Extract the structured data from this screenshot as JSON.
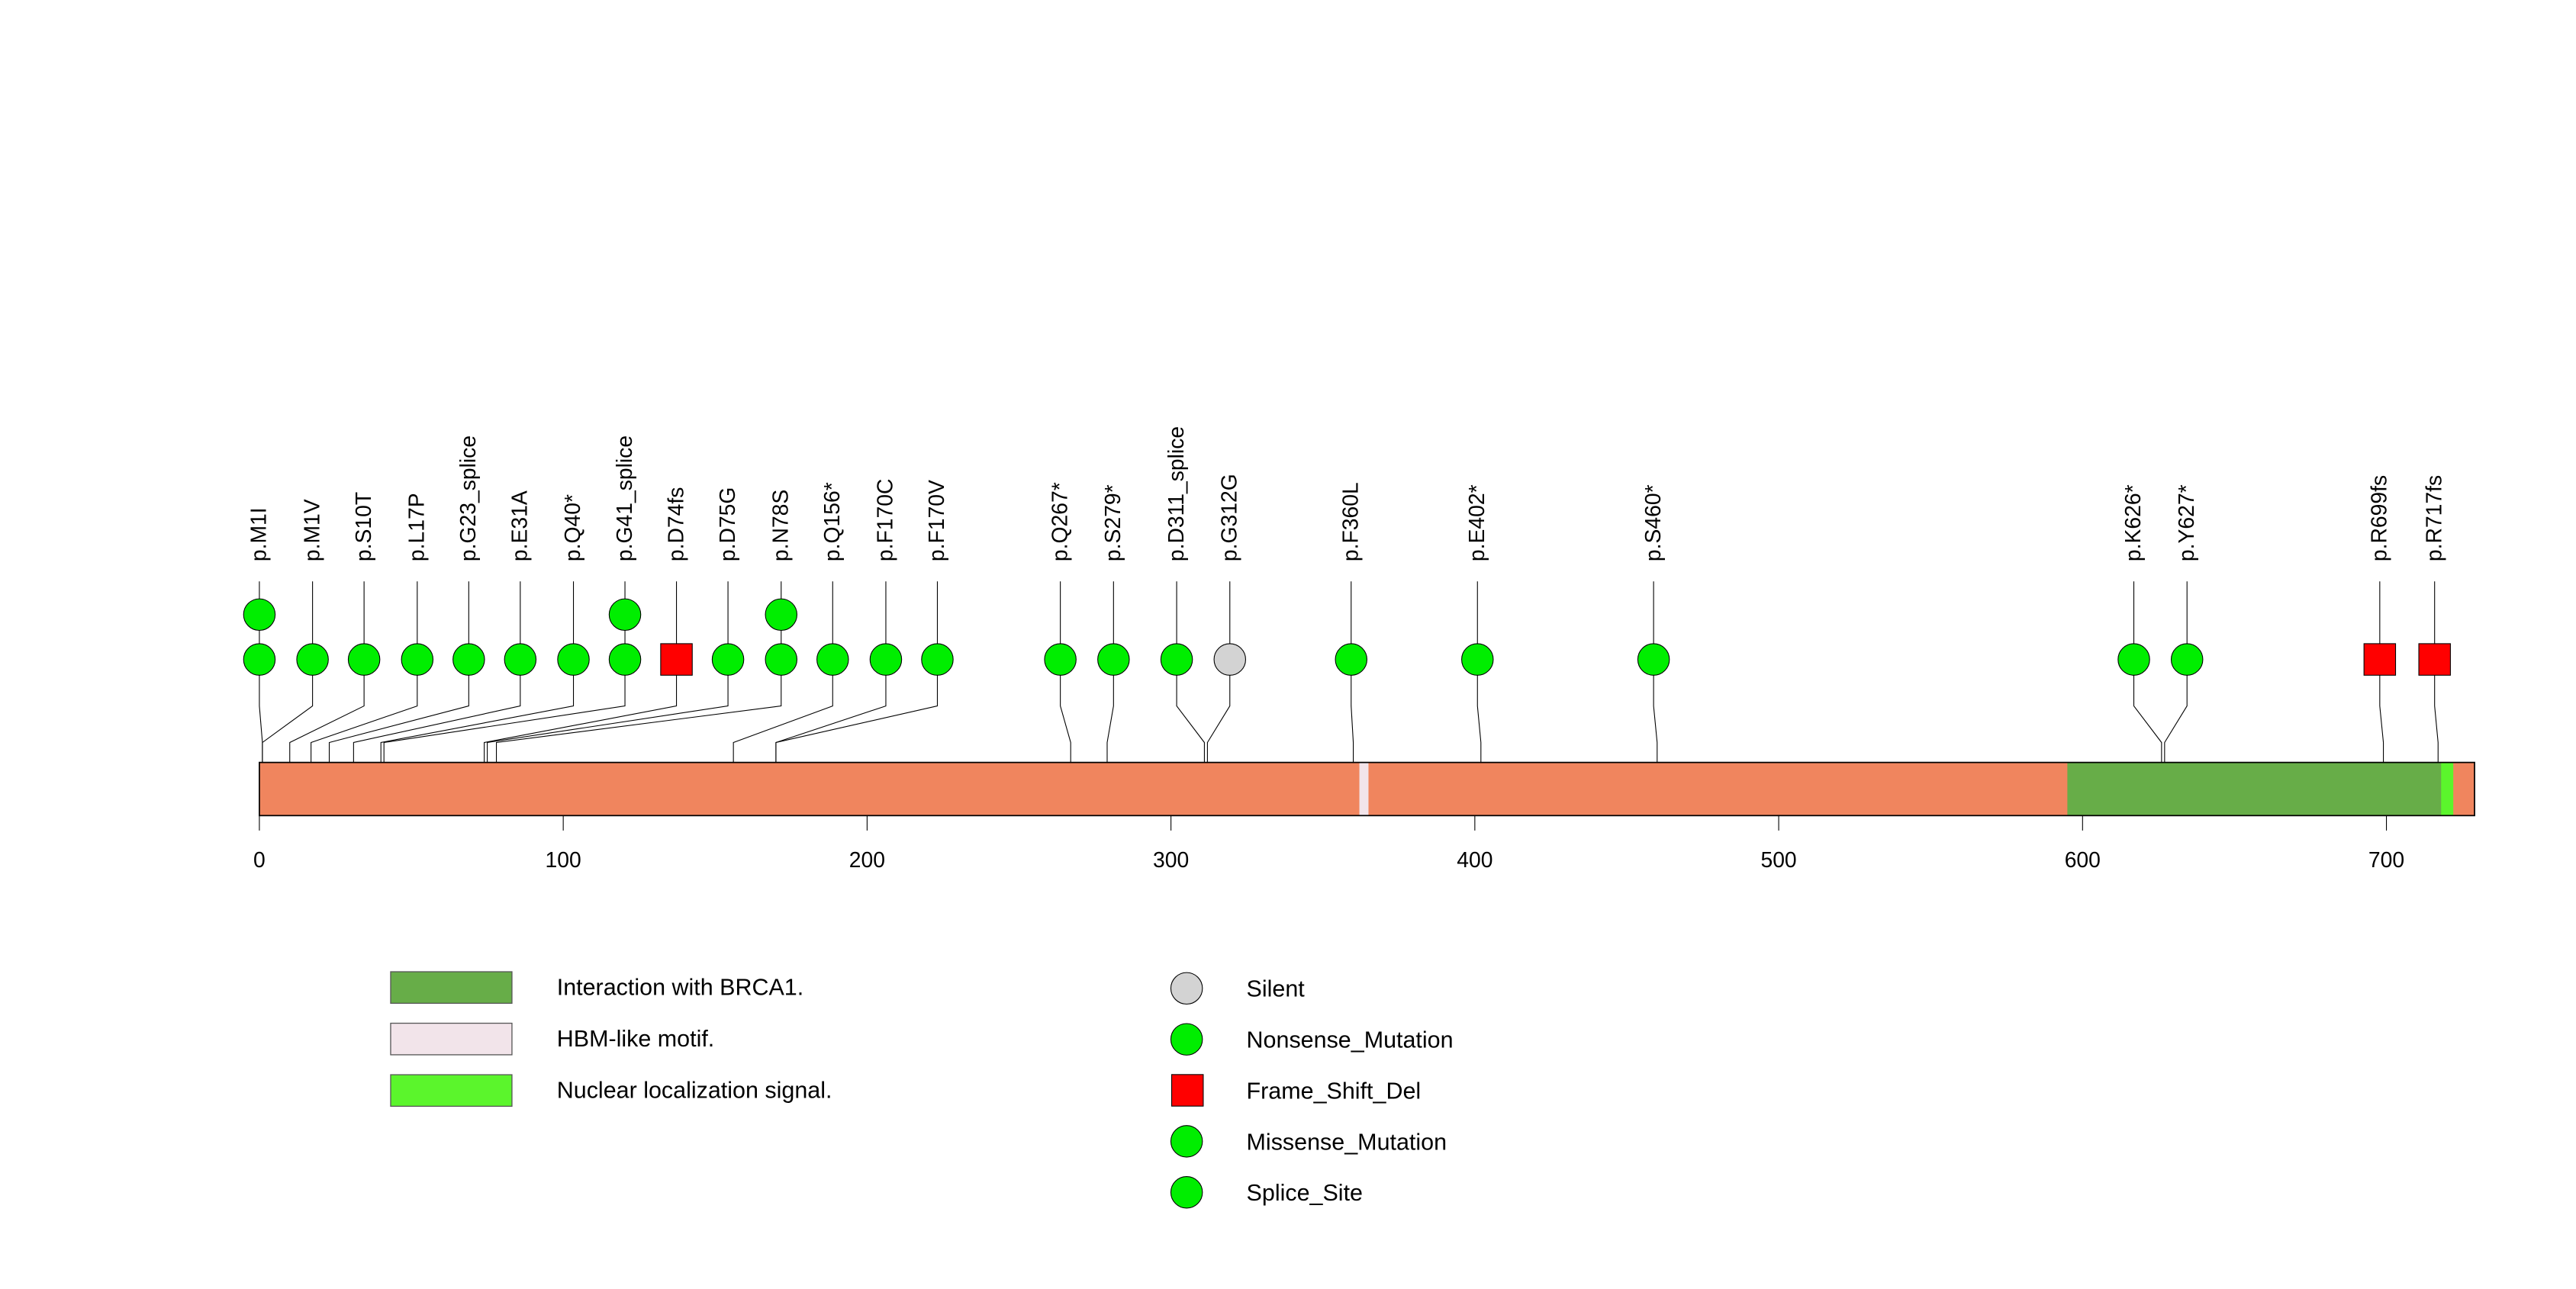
{
  "chart_data": {
    "type": "lollipop",
    "title": "",
    "xlabel": "",
    "protein_length": 729,
    "xlim": [
      0,
      729
    ],
    "x_ticks": [
      0,
      100,
      200,
      300,
      400,
      500,
      600,
      700
    ],
    "domains": [
      {
        "name": "Interaction with BRCA1.",
        "start": 595,
        "end": 720,
        "color": "#67ad48"
      },
      {
        "name": "HBM-like motif.",
        "start": 362,
        "end": 365,
        "color": "#f2e4ea"
      },
      {
        "name": "Nuclear localization signal.",
        "start": 718,
        "end": 722,
        "color": "#5bf52c"
      }
    ],
    "backbone_color": "#f0855e",
    "mutations": [
      {
        "label": "p.M1I",
        "pos": 1,
        "count": 2,
        "type": "Missense_Mutation"
      },
      {
        "label": "p.M1V",
        "pos": 1,
        "count": 1,
        "type": "Missense_Mutation"
      },
      {
        "label": "p.S10T",
        "pos": 10,
        "count": 1,
        "type": "Missense_Mutation"
      },
      {
        "label": "p.L17P",
        "pos": 17,
        "count": 1,
        "type": "Missense_Mutation"
      },
      {
        "label": "p.G23_splice",
        "pos": 23,
        "count": 1,
        "type": "Splice_Site"
      },
      {
        "label": "p.E31A",
        "pos": 31,
        "count": 1,
        "type": "Missense_Mutation"
      },
      {
        "label": "p.Q40*",
        "pos": 40,
        "count": 1,
        "type": "Nonsense_Mutation"
      },
      {
        "label": "p.G41_splice",
        "pos": 41,
        "count": 2,
        "type": "Splice_Site"
      },
      {
        "label": "p.D74fs",
        "pos": 74,
        "count": 1,
        "type": "Frame_Shift_Del"
      },
      {
        "label": "p.D75G",
        "pos": 75,
        "count": 1,
        "type": "Missense_Mutation"
      },
      {
        "label": "p.N78S",
        "pos": 78,
        "count": 2,
        "type": "Missense_Mutation"
      },
      {
        "label": "p.Q156*",
        "pos": 156,
        "count": 1,
        "type": "Nonsense_Mutation"
      },
      {
        "label": "p.F170C",
        "pos": 170,
        "count": 1,
        "type": "Missense_Mutation"
      },
      {
        "label": "p.F170V",
        "pos": 170,
        "count": 1,
        "type": "Missense_Mutation"
      },
      {
        "label": "p.Q267*",
        "pos": 267,
        "count": 1,
        "type": "Nonsense_Mutation"
      },
      {
        "label": "p.S279*",
        "pos": 279,
        "count": 1,
        "type": "Nonsense_Mutation"
      },
      {
        "label": "p.D311_splice",
        "pos": 311,
        "count": 1,
        "type": "Splice_Site"
      },
      {
        "label": "p.G312G",
        "pos": 312,
        "count": 1,
        "type": "Silent"
      },
      {
        "label": "p.F360L",
        "pos": 360,
        "count": 1,
        "type": "Missense_Mutation"
      },
      {
        "label": "p.E402*",
        "pos": 402,
        "count": 1,
        "type": "Nonsense_Mutation"
      },
      {
        "label": "p.S460*",
        "pos": 460,
        "count": 1,
        "type": "Nonsense_Mutation"
      },
      {
        "label": "p.K626*",
        "pos": 626,
        "count": 1,
        "type": "Nonsense_Mutation"
      },
      {
        "label": "p.Y627*",
        "pos": 627,
        "count": 1,
        "type": "Nonsense_Mutation"
      },
      {
        "label": "p.R699fs",
        "pos": 699,
        "count": 1,
        "type": "Frame_Shift_Del"
      },
      {
        "label": "p.R717fs",
        "pos": 717,
        "count": 1,
        "type": "Frame_Shift_Del"
      }
    ],
    "mutation_types": [
      {
        "name": "Silent",
        "color": "#d3d3d3",
        "shape": "circle"
      },
      {
        "name": "Nonsense_Mutation",
        "color": "#00ee00",
        "shape": "circle"
      },
      {
        "name": "Frame_Shift_Del",
        "color": "#ff0000",
        "shape": "square"
      },
      {
        "name": "Missense_Mutation",
        "color": "#00ee00",
        "shape": "circle"
      },
      {
        "name": "Splice_Site",
        "color": "#00ee00",
        "shape": "circle"
      }
    ],
    "legend_placement": "bottom"
  }
}
